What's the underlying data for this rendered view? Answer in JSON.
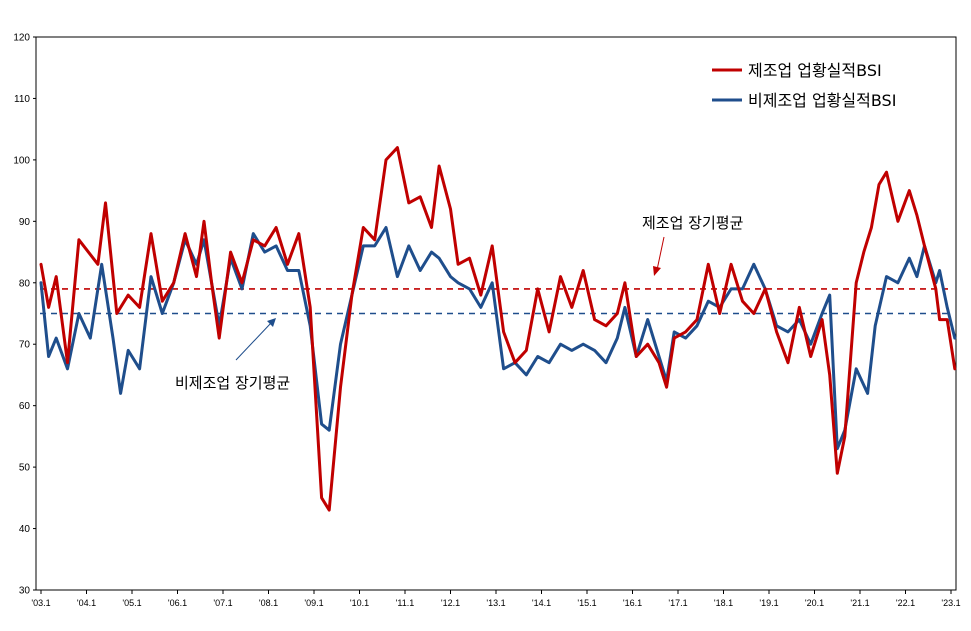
{
  "chart_data": {
    "type": "line",
    "ylim": [
      30,
      120
    ],
    "yticks": [
      30,
      40,
      50,
      60,
      70,
      80,
      90,
      100,
      110,
      120
    ],
    "xticks": [
      "'03.1",
      "'04.1",
      "'05.1",
      "'06.1",
      "'07.1",
      "'08.1",
      "'09.1",
      "'10.1",
      "'11.1",
      "'12.1",
      "'13.1",
      "'14.1",
      "'15.1",
      "'16.1",
      "'17.1",
      "'18.1",
      "'19.1",
      "'20.1",
      "'21.1",
      "'22.1",
      "'23.1"
    ],
    "x_start": "2003-01",
    "x_end": "2023-01",
    "grid": false,
    "legend_position": "top-right",
    "series": [
      {
        "name": "제조업 업황실적BSI",
        "color": "#c00000",
        "keypoints": [
          [
            "2003-01",
            83
          ],
          [
            "2003-03",
            76
          ],
          [
            "2003-05",
            81
          ],
          [
            "2003-08",
            67
          ],
          [
            "2003-11",
            87
          ],
          [
            "2004-04",
            83
          ],
          [
            "2004-06",
            93
          ],
          [
            "2004-09",
            75
          ],
          [
            "2004-12",
            78
          ],
          [
            "2005-03",
            76
          ],
          [
            "2005-06",
            88
          ],
          [
            "2005-09",
            77
          ],
          [
            "2005-12",
            80
          ],
          [
            "2006-03",
            88
          ],
          [
            "2006-06",
            81
          ],
          [
            "2006-08",
            90
          ],
          [
            "2006-10",
            80
          ],
          [
            "2006-12",
            71
          ],
          [
            "2007-03",
            85
          ],
          [
            "2007-06",
            80
          ],
          [
            "2007-09",
            87
          ],
          [
            "2007-12",
            86
          ],
          [
            "2008-03",
            89
          ],
          [
            "2008-06",
            83
          ],
          [
            "2008-09",
            88
          ],
          [
            "2008-12",
            76
          ],
          [
            "2009-03",
            45
          ],
          [
            "2009-05",
            43
          ],
          [
            "2009-08",
            63
          ],
          [
            "2009-11",
            78
          ],
          [
            "2010-02",
            89
          ],
          [
            "2010-05",
            87
          ],
          [
            "2010-08",
            100
          ],
          [
            "2010-11",
            102
          ],
          [
            "2011-02",
            93
          ],
          [
            "2011-05",
            94
          ],
          [
            "2011-08",
            89
          ],
          [
            "2011-10",
            99
          ],
          [
            "2012-01",
            92
          ],
          [
            "2012-03",
            83
          ],
          [
            "2012-06",
            84
          ],
          [
            "2012-09",
            78
          ],
          [
            "2012-12",
            86
          ],
          [
            "2013-03",
            72
          ],
          [
            "2013-06",
            67
          ],
          [
            "2013-09",
            69
          ],
          [
            "2013-12",
            79
          ],
          [
            "2014-03",
            72
          ],
          [
            "2014-06",
            81
          ],
          [
            "2014-09",
            76
          ],
          [
            "2014-12",
            82
          ],
          [
            "2015-03",
            74
          ],
          [
            "2015-06",
            73
          ],
          [
            "2015-09",
            75
          ],
          [
            "2015-11",
            80
          ],
          [
            "2016-02",
            68
          ],
          [
            "2016-05",
            70
          ],
          [
            "2016-08",
            67
          ],
          [
            "2016-10",
            63
          ],
          [
            "2016-12",
            71
          ],
          [
            "2017-03",
            72
          ],
          [
            "2017-06",
            74
          ],
          [
            "2017-09",
            83
          ],
          [
            "2017-12",
            75
          ],
          [
            "2018-03",
            83
          ],
          [
            "2018-06",
            77
          ],
          [
            "2018-09",
            75
          ],
          [
            "2018-12",
            79
          ],
          [
            "2019-03",
            72
          ],
          [
            "2019-06",
            67
          ],
          [
            "2019-09",
            76
          ],
          [
            "2019-12",
            68
          ],
          [
            "2020-03",
            74
          ],
          [
            "2020-05",
            65
          ],
          [
            "2020-07",
            49
          ],
          [
            "2020-09",
            55
          ],
          [
            "2020-12",
            80
          ],
          [
            "2021-02",
            85
          ],
          [
            "2021-04",
            89
          ],
          [
            "2021-06",
            96
          ],
          [
            "2021-08",
            98
          ],
          [
            "2021-11",
            90
          ],
          [
            "2022-02",
            95
          ],
          [
            "2022-04",
            91
          ],
          [
            "2022-06",
            86
          ],
          [
            "2022-09",
            79
          ],
          [
            "2022-10",
            74
          ],
          [
            "2022-12",
            74
          ],
          [
            "2023-02",
            66
          ]
        ]
      },
      {
        "name": "비제조업 업황실적BSI",
        "color": "#1f4e8c",
        "keypoints": [
          [
            "2003-01",
            80
          ],
          [
            "2003-03",
            68
          ],
          [
            "2003-05",
            71
          ],
          [
            "2003-08",
            66
          ],
          [
            "2003-11",
            75
          ],
          [
            "2004-02",
            71
          ],
          [
            "2004-05",
            83
          ],
          [
            "2004-08",
            71
          ],
          [
            "2004-10",
            62
          ],
          [
            "2004-12",
            69
          ],
          [
            "2005-03",
            66
          ],
          [
            "2005-06",
            81
          ],
          [
            "2005-09",
            75
          ],
          [
            "2005-12",
            80
          ],
          [
            "2006-03",
            87
          ],
          [
            "2006-06",
            83
          ],
          [
            "2006-08",
            87
          ],
          [
            "2006-10",
            80
          ],
          [
            "2006-12",
            73
          ],
          [
            "2007-03",
            84
          ],
          [
            "2007-06",
            79
          ],
          [
            "2007-09",
            88
          ],
          [
            "2007-12",
            85
          ],
          [
            "2008-03",
            86
          ],
          [
            "2008-06",
            82
          ],
          [
            "2008-09",
            82
          ],
          [
            "2008-12",
            73
          ],
          [
            "2009-03",
            57
          ],
          [
            "2009-05",
            56
          ],
          [
            "2009-08",
            70
          ],
          [
            "2009-11",
            78
          ],
          [
            "2010-02",
            86
          ],
          [
            "2010-05",
            86
          ],
          [
            "2010-08",
            89
          ],
          [
            "2010-11",
            81
          ],
          [
            "2011-02",
            86
          ],
          [
            "2011-05",
            82
          ],
          [
            "2011-08",
            85
          ],
          [
            "2011-10",
            84
          ],
          [
            "2012-01",
            81
          ],
          [
            "2012-03",
            80
          ],
          [
            "2012-06",
            79
          ],
          [
            "2012-09",
            76
          ],
          [
            "2012-12",
            80
          ],
          [
            "2013-03",
            66
          ],
          [
            "2013-06",
            67
          ],
          [
            "2013-09",
            65
          ],
          [
            "2013-12",
            68
          ],
          [
            "2014-03",
            67
          ],
          [
            "2014-06",
            70
          ],
          [
            "2014-09",
            69
          ],
          [
            "2014-12",
            70
          ],
          [
            "2015-03",
            69
          ],
          [
            "2015-06",
            67
          ],
          [
            "2015-09",
            71
          ],
          [
            "2015-11",
            76
          ],
          [
            "2016-02",
            68
          ],
          [
            "2016-05",
            74
          ],
          [
            "2016-08",
            68
          ],
          [
            "2016-10",
            64
          ],
          [
            "2016-12",
            72
          ],
          [
            "2017-03",
            71
          ],
          [
            "2017-06",
            73
          ],
          [
            "2017-09",
            77
          ],
          [
            "2017-12",
            76
          ],
          [
            "2018-03",
            79
          ],
          [
            "2018-06",
            79
          ],
          [
            "2018-09",
            83
          ],
          [
            "2018-12",
            79
          ],
          [
            "2019-03",
            73
          ],
          [
            "2019-06",
            72
          ],
          [
            "2019-09",
            74
          ],
          [
            "2019-12",
            70
          ],
          [
            "2020-03",
            75
          ],
          [
            "2020-05",
            78
          ],
          [
            "2020-07",
            53
          ],
          [
            "2020-09",
            56
          ],
          [
            "2020-12",
            66
          ],
          [
            "2021-03",
            62
          ],
          [
            "2021-05",
            73
          ],
          [
            "2021-08",
            81
          ],
          [
            "2021-11",
            80
          ],
          [
            "2022-02",
            84
          ],
          [
            "2022-04",
            81
          ],
          [
            "2022-06",
            86
          ],
          [
            "2022-09",
            80
          ],
          [
            "2022-10",
            82
          ],
          [
            "2022-12",
            76
          ],
          [
            "2023-02",
            71
          ]
        ]
      }
    ],
    "reference_lines": [
      {
        "name": "제조업 장기평균",
        "value": 79,
        "color": "#c00000"
      },
      {
        "name": "비제조업 장기평균",
        "value": 75,
        "color": "#1f4e8c"
      }
    ]
  },
  "annotations": {
    "manufacturing_avg_label": "제조업 장기평균",
    "nonmanufacturing_avg_label": "비제조업 장기평균"
  }
}
